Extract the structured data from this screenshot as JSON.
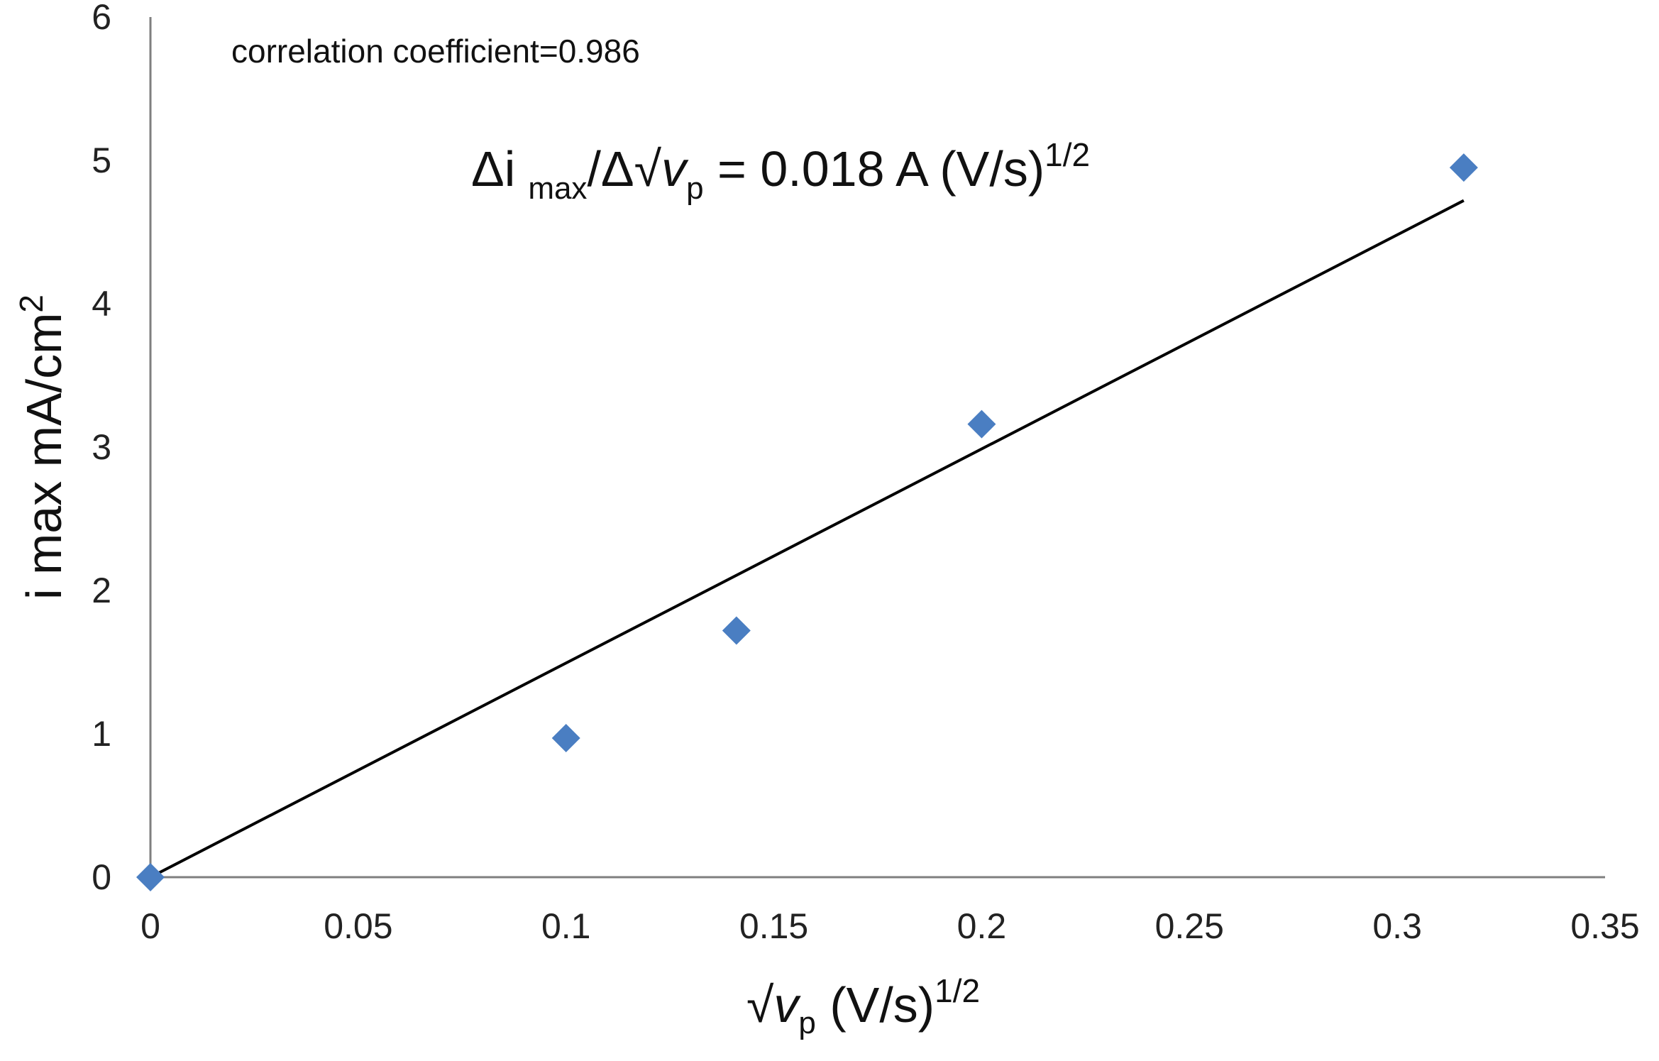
{
  "chart_data": {
    "type": "scatter",
    "title": "",
    "xlabel": {
      "root": "√",
      "var": "v",
      "sub": "p",
      "units": " (V/s)",
      "sup": "1/2"
    },
    "ylabel": {
      "text": "i max mA/cm",
      "sup": "2"
    },
    "xlim": [
      0,
      0.35
    ],
    "ylim": [
      0,
      6
    ],
    "x_ticks": [
      "0",
      "0.05",
      "0.1",
      "0.15",
      "0.2",
      "0.25",
      "0.3",
      "0.35"
    ],
    "y_ticks": [
      "0",
      "1",
      "2",
      "3",
      "4",
      "5",
      "6"
    ],
    "grid": false,
    "series": [
      {
        "name": "i max",
        "marker": "diamond",
        "color": "#4A7EC2",
        "x": [
          0,
          0.1,
          0.141,
          0.2,
          0.316
        ],
        "y": [
          0,
          0.97,
          1.72,
          3.16,
          4.95
        ]
      }
    ],
    "trendline": {
      "type": "linear",
      "color": "#000000",
      "x": [
        0,
        0.316
      ],
      "y": [
        0,
        4.72
      ]
    },
    "annotations": {
      "correlation": "correlation coefficient=0.986",
      "slope_equation": {
        "delta_i": "Δi",
        "max_sub": "max",
        "slash_delta": "/Δ",
        "root": "√",
        "var": "v",
        "sub_p": "p",
        "rest": " = 0.018 A (V/s)",
        "sup": "1/2"
      }
    }
  }
}
